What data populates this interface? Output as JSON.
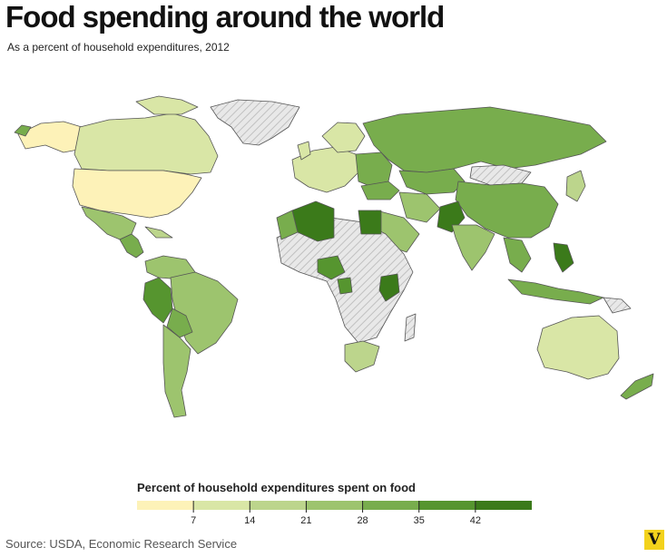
{
  "header": {
    "title": "Food spending around the world",
    "subtitle": "As a percent of household expenditures, 2012"
  },
  "legend": {
    "title": "Percent of household expenditures spent on food",
    "ticks": [
      "7",
      "14",
      "21",
      "28",
      "35",
      "42"
    ],
    "bins": [
      {
        "min": 0,
        "max": 7,
        "color": "#fdf2b8"
      },
      {
        "min": 7,
        "max": 14,
        "color": "#d9e6a6"
      },
      {
        "min": 14,
        "max": 21,
        "color": "#bcd58c"
      },
      {
        "min": 21,
        "max": 28,
        "color": "#9dc46e"
      },
      {
        "min": 28,
        "max": 35,
        "color": "#78ad4d"
      },
      {
        "min": 35,
        "max": 42,
        "color": "#56952f"
      },
      {
        "min": 42,
        "max": 49,
        "color": "#3b7a1a"
      }
    ],
    "no_data_color": "#e3e3e3"
  },
  "footer": {
    "source": "Source: USDA, Economic Research Service",
    "logo": "V"
  },
  "colors": {
    "ocean": "#ffffff",
    "border": "#555555",
    "no_data_hatch": "#c8c8c8"
  }
}
